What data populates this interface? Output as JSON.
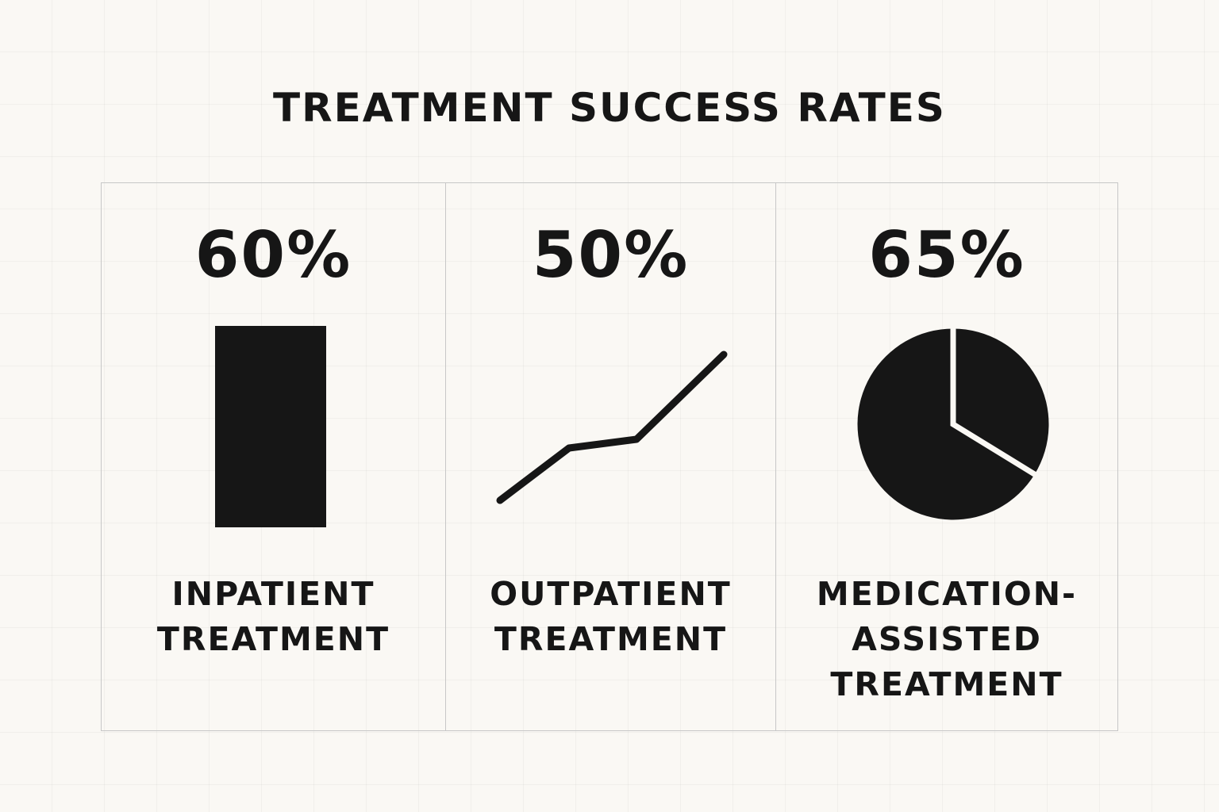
{
  "title": "TREATMENT SUCCESS RATES",
  "colors": {
    "background": "#faf8f4",
    "ink": "#161616",
    "panel_border": "#c7c7c7"
  },
  "chart_data": {
    "type": "bar",
    "title": "TREATMENT SUCCESS RATES",
    "unit": "%",
    "grid": true,
    "categories": [
      [
        "INPATIENT",
        "TREATMENT"
      ],
      [
        "OUTPATIENT",
        "TREATMENT"
      ],
      [
        "MEDICATION-",
        "ASSISTED",
        "TREATMENT"
      ]
    ],
    "values": [
      60,
      50,
      65
    ],
    "value_labels": [
      "60%",
      "50%",
      "65%"
    ],
    "icons": [
      "bar-chart-icon",
      "line-chart-icon",
      "pie-chart-icon"
    ]
  }
}
